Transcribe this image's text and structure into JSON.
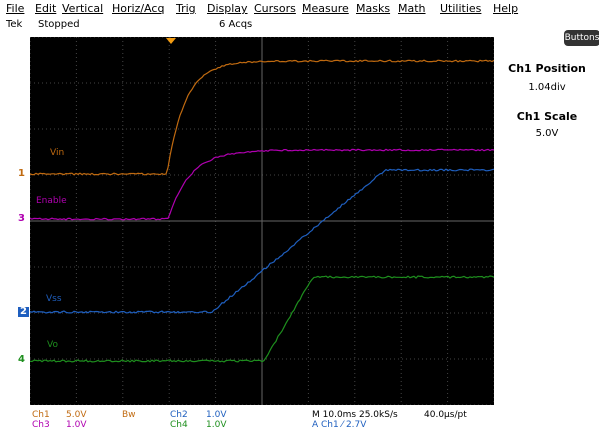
{
  "menu": [
    "File",
    "Edit",
    "Vertical",
    "Horiz/Acq",
    "Trig",
    "Display",
    "Cursors",
    "Measure",
    "Masks",
    "Math",
    "Utilities",
    "Help"
  ],
  "status": {
    "brand": "Tek",
    "state": "Stopped",
    "acqs": "6 Acqs"
  },
  "channels": {
    "ch1": {
      "marker": "1",
      "label": "Vin",
      "color": "#c06a10"
    },
    "ch3": {
      "marker": "3",
      "label": "Enable",
      "color": "#b000b0"
    },
    "ch2": {
      "marker": "2",
      "label": "Vss",
      "color": "#1f5fbf"
    },
    "ch4": {
      "marker": "4",
      "label": "Vo",
      "color": "#1e8f1e"
    }
  },
  "side_panel": {
    "button": "Buttons",
    "title1": "Ch1 Position",
    "value1": "1.04div",
    "title2": "Ch1 Scale",
    "value2": "5.0V"
  },
  "readout": {
    "ch1": "Ch1",
    "ch1_scale": "5.0V",
    "bw": "Bw",
    "ch2": "Ch2",
    "ch2_scale": "1.0V",
    "ch3": "Ch3",
    "ch3_scale": "1.0V",
    "ch4": "Ch4",
    "ch4_scale": "1.0V",
    "timebase": "M 10.0ms 25.0kS/s",
    "resolution": "40.0µs/pt",
    "trigger": "A  Ch1  ⁄  2.7V"
  }
}
